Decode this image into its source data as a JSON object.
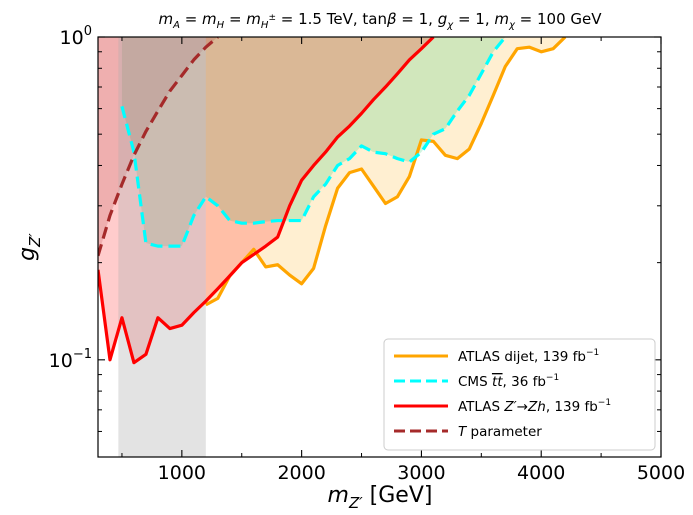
{
  "chart_data": {
    "type": "line",
    "title": "m_A = m_H = m_H± = 1.5 TeV, tanβ = 1, g_χ = 1, m_χ = 100 GeV",
    "title_parts": {
      "mA": "m",
      "mA_sub": "A",
      "eq1": " = ",
      "mH": "m",
      "mH_sub": "H",
      "mHpm": "m",
      "mHpm_sub": "H",
      "mHpm_sup": "±",
      "value1": " = 1.5 TeV, tan",
      "beta": "β",
      "value2": " = 1, ",
      "g": "g",
      "g_sub": "χ",
      "value3": " = 1, ",
      "m": "m",
      "m_sub": "χ",
      "value4": " = 100 GeV"
    },
    "xlabel": "m_Z' [GeV]",
    "xlabel_parts": {
      "main": "m",
      "sub": "Z′",
      "unit": " [GeV]"
    },
    "ylabel": "g_Z'",
    "ylabel_parts": {
      "main": "g",
      "sub": "Z′"
    },
    "xlim": [
      300,
      5000
    ],
    "ylim": [
      0.05,
      1.0
    ],
    "yscale": "log",
    "xticks": [
      1000,
      2000,
      3000,
      4000,
      5000
    ],
    "xtick_labels": [
      "1000",
      "2000",
      "3000",
      "4000",
      "5000"
    ],
    "ytick_labels": [
      {
        "value": 0.1,
        "base": "10",
        "exp": "−1"
      },
      {
        "value": 1.0,
        "base": "10",
        "exp": "0"
      }
    ],
    "grid": false,
    "legend_position": "lower-right",
    "series": [
      {
        "name": "ATLAS dijet, 139 fb⁻¹",
        "legend": {
          "text": "ATLAS dijet, 139 fb",
          "sup": "−1"
        },
        "color": "#ffa500",
        "fill": "#ffa500",
        "fill_opacity": 0.18,
        "style": "solid",
        "x": [
          1200,
          1300,
          1400,
          1500,
          1600,
          1700,
          1800,
          1900,
          2000,
          2100,
          2200,
          2300,
          2400,
          2500,
          2600,
          2700,
          2800,
          2900,
          3000,
          3100,
          3200,
          3300,
          3400,
          3500,
          3600,
          3700,
          3800,
          3900,
          4000,
          4100,
          4200
        ],
        "y": [
          0.148,
          0.155,
          0.182,
          0.2,
          0.22,
          0.194,
          0.197,
          0.183,
          0.172,
          0.192,
          0.26,
          0.34,
          0.38,
          0.39,
          0.345,
          0.305,
          0.32,
          0.37,
          0.48,
          0.475,
          0.43,
          0.42,
          0.45,
          0.54,
          0.66,
          0.81,
          0.92,
          0.93,
          0.9,
          0.92,
          1.0
        ]
      },
      {
        "name": "CMS tt̄, 36 fb⁻¹",
        "legend": {
          "prefix": "CMS ",
          "tt": "tt",
          "suffix": ", 36 fb",
          "sup": "−1"
        },
        "color": "#00ffff",
        "fill": "#2ecc71",
        "fill_opacity": 0.22,
        "style": "dashed",
        "x": [
          500,
          600,
          700,
          800,
          900,
          1000,
          1100,
          1200,
          1300,
          1400,
          1500,
          1600,
          1700,
          1800,
          1900,
          2000,
          2100,
          2200,
          2300,
          2400,
          2500,
          2600,
          2700,
          2800,
          2900,
          3000,
          3100,
          3200,
          3300,
          3400,
          3500,
          3600,
          3700
        ],
        "y": [
          0.61,
          0.44,
          0.23,
          0.225,
          0.225,
          0.225,
          0.28,
          0.32,
          0.3,
          0.27,
          0.265,
          0.265,
          0.268,
          0.27,
          0.27,
          0.27,
          0.32,
          0.35,
          0.4,
          0.42,
          0.46,
          0.44,
          0.435,
          0.42,
          0.41,
          0.44,
          0.5,
          0.52,
          0.59,
          0.66,
          0.77,
          0.9,
          1.0
        ]
      },
      {
        "name": "ATLAS Z′→Zh, 139 fb⁻¹",
        "legend": {
          "prefix": "ATLAS ",
          "zp": "Z′",
          "arrow": "→",
          "zh": "Zh",
          "suffix": ", 139 fb",
          "sup": "−1"
        },
        "color": "#ff0000",
        "fill": "#ff0000",
        "fill_opacity": 0.2,
        "style": "solid",
        "x": [
          300,
          400,
          500,
          600,
          700,
          800,
          900,
          1000,
          1100,
          1200,
          1300,
          1400,
          1500,
          1600,
          1700,
          1800,
          1900,
          2000,
          2100,
          2200,
          2300,
          2400,
          2500,
          2600,
          2700,
          2800,
          2900,
          3000,
          3100
        ],
        "y": [
          0.19,
          0.1,
          0.135,
          0.098,
          0.104,
          0.135,
          0.125,
          0.128,
          0.14,
          0.152,
          0.166,
          0.182,
          0.2,
          0.212,
          0.225,
          0.24,
          0.3,
          0.36,
          0.4,
          0.44,
          0.49,
          0.53,
          0.58,
          0.64,
          0.7,
          0.77,
          0.85,
          0.92,
          1.0
        ]
      },
      {
        "name": "T parameter",
        "legend": {
          "t": "T",
          "suffix": " parameter"
        },
        "color": "#a52a2a",
        "fill": "#a52a2a",
        "fill_opacity": 0.18,
        "style": "dashed",
        "x": [
          300,
          400,
          500,
          600,
          700,
          800,
          900,
          1000,
          1100,
          1200,
          1300
        ],
        "y": [
          0.21,
          0.28,
          0.35,
          0.43,
          0.51,
          0.59,
          0.68,
          0.76,
          0.85,
          0.93,
          1.0
        ]
      }
    ],
    "shaded_bands": [
      {
        "x_from": 470,
        "x_to": 1200,
        "color": "#b0b0b0",
        "opacity": 0.35
      }
    ]
  }
}
